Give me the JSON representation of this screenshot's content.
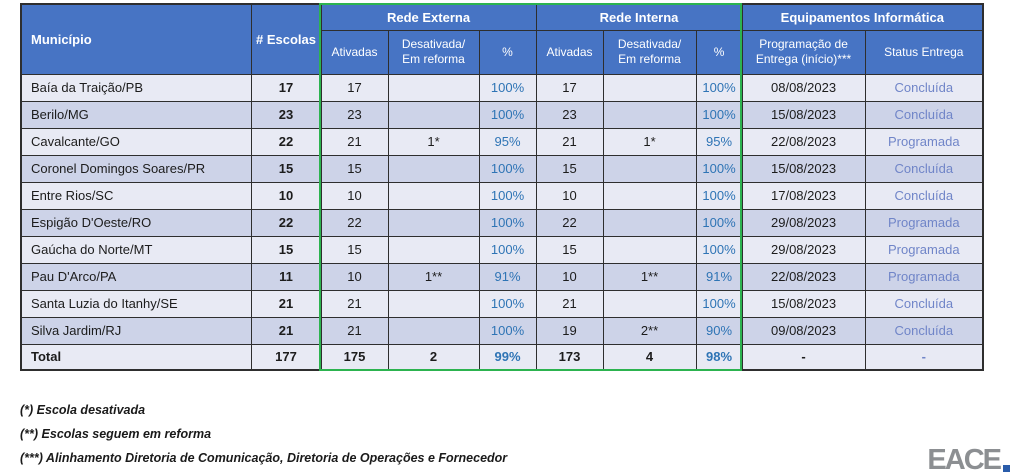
{
  "table": {
    "columns": {
      "municipio": "Município",
      "escolas": "# Escolas",
      "groups": [
        {
          "label": "Rede Externa"
        },
        {
          "label": "Rede Interna"
        },
        {
          "label": "Equipamentos Informática"
        }
      ],
      "sub": {
        "ativadas": "Ativadas",
        "desativada": "Desativada/\nEm reforma",
        "pct": "%",
        "programacao": "Programação de Entrega (início)***",
        "status": "Status Entrega"
      }
    },
    "rows": [
      [
        "Baía da Traição/PB",
        "17",
        "17",
        "",
        "100%",
        "17",
        "",
        "100%",
        "08/08/2023",
        "Concluída"
      ],
      [
        "Berilo/MG",
        "23",
        "23",
        "",
        "100%",
        "23",
        "",
        "100%",
        "15/08/2023",
        "Concluída"
      ],
      [
        "Cavalcante/GO",
        "22",
        "21",
        "1*",
        "95%",
        "21",
        "1*",
        "95%",
        "22/08/2023",
        "Programada"
      ],
      [
        "Coronel Domingos Soares/PR",
        "15",
        "15",
        "",
        "100%",
        "15",
        "",
        "100%",
        "15/08/2023",
        "Concluída"
      ],
      [
        "Entre Rios/SC",
        "10",
        "10",
        "",
        "100%",
        "10",
        "",
        "100%",
        "17/08/2023",
        "Concluída"
      ],
      [
        "Espigão D'Oeste/RO",
        "22",
        "22",
        "",
        "100%",
        "22",
        "",
        "100%",
        "29/08/2023",
        "Programada"
      ],
      [
        "Gaúcha do Norte/MT",
        "15",
        "15",
        "",
        "100%",
        "15",
        "",
        "100%",
        "29/08/2023",
        "Programada"
      ],
      [
        "Pau D'Arco/PA",
        "11",
        "10",
        "1**",
        "91%",
        "10",
        "1**",
        "91%",
        "22/08/2023",
        "Programada"
      ],
      [
        "Santa Luzia do Itanhy/SE",
        "21",
        "21",
        "",
        "100%",
        "21",
        "",
        "100%",
        "15/08/2023",
        "Concluída"
      ],
      [
        "Silva Jardim/RJ",
        "21",
        "21",
        "",
        "100%",
        "19",
        "2**",
        "90%",
        "09/08/2023",
        "Concluída"
      ]
    ],
    "total": [
      "Total",
      "177",
      "175",
      "2",
      "99%",
      "173",
      "4",
      "98%",
      "-",
      "-"
    ]
  },
  "footnotes": [
    "(*) Escola desativada",
    "(**) Escolas seguem em reforma",
    "(***) Alinhamento Diretoria de Comunicação, Diretoria de Operações e Fornecedor"
  ],
  "logo": {
    "text": "EACE"
  },
  "colors": {
    "header_blue": "#4774c4",
    "row_light": "#e8eaf4",
    "row_dark": "#cdd3e8",
    "percent_blue": "#2e74b5",
    "status_blue": "#7085c8",
    "highlight_green": "#2cb34f",
    "logo_gray": "#8c8f92",
    "logo_accent": "#2a5caa"
  }
}
